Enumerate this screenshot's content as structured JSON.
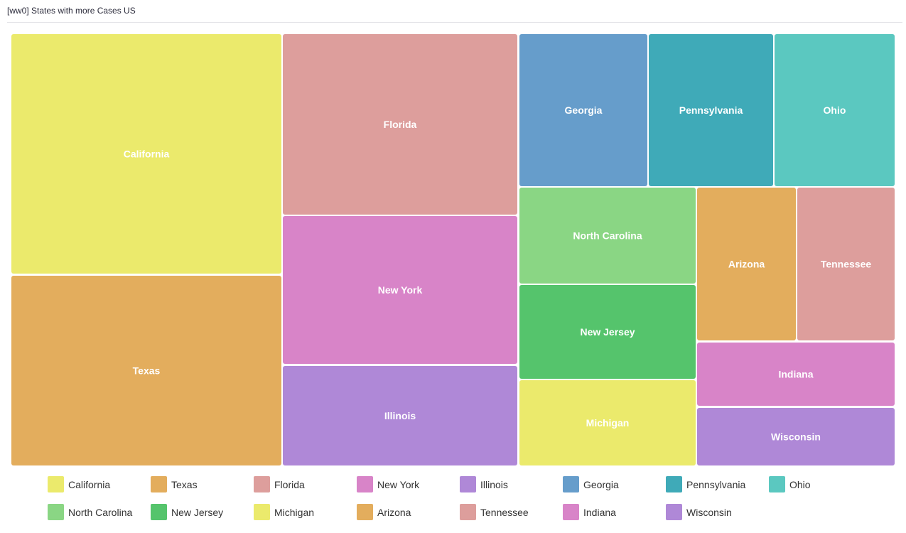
{
  "title": "[ww0] States with more Cases US",
  "colors": {
    "California": "#ebea6c",
    "Texas": "#e3ad5d",
    "Florida": "#dd9e9c",
    "New York": "#d884c8",
    "Illinois": "#af88d7",
    "Georgia": "#669dcb",
    "Pennsylvania": "#3faab8",
    "Ohio": "#5bc8c0",
    "North Carolina": "#8ad684",
    "New Jersey": "#55c46c",
    "Michigan": "#ebea6c",
    "Arizona": "#e3ad5d",
    "Tennessee": "#dd9e9c",
    "Indiana": "#d884c8",
    "Wisconsin": "#af88d7"
  },
  "chart_data": {
    "type": "treemap",
    "items": [
      {
        "name": "California"
      },
      {
        "name": "Texas"
      },
      {
        "name": "Florida"
      },
      {
        "name": "New York"
      },
      {
        "name": "Illinois"
      },
      {
        "name": "Georgia"
      },
      {
        "name": "Pennsylvania"
      },
      {
        "name": "Ohio"
      },
      {
        "name": "North Carolina"
      },
      {
        "name": "New Jersey"
      },
      {
        "name": "Michigan"
      },
      {
        "name": "Arizona"
      },
      {
        "name": "Tennessee"
      },
      {
        "name": "Indiana"
      },
      {
        "name": "Wisconsin"
      }
    ],
    "legend": {
      "position": "bottom",
      "rows": [
        [
          "California",
          "Texas",
          "Florida",
          "New York",
          "Illinois",
          "Georgia",
          "Pennsylvania",
          "Ohio"
        ],
        [
          "North Carolina",
          "New Jersey",
          "Michigan",
          "Arizona",
          "Tennessee",
          "Indiana",
          "Wisconsin"
        ]
      ]
    }
  }
}
